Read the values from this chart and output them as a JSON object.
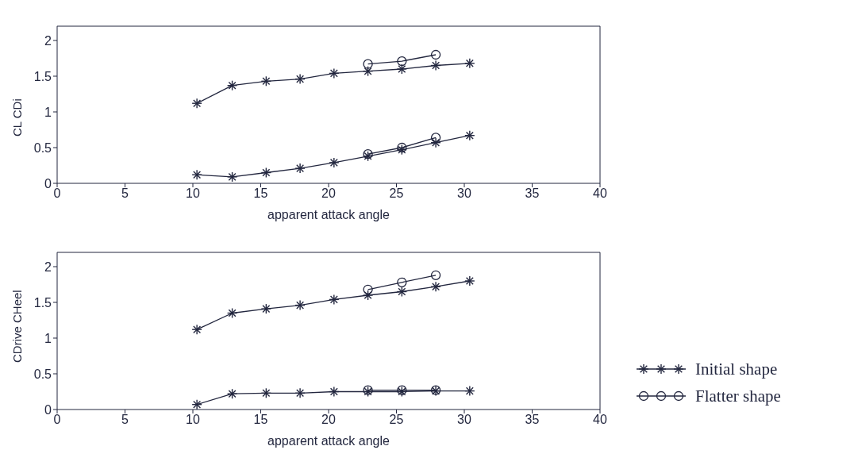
{
  "chart_data": [
    {
      "type": "line",
      "xlabel": "apparent attack angle",
      "ylabel": "CL  CDi",
      "xlim": [
        0,
        40
      ],
      "xticks": [
        0,
        5,
        10,
        15,
        20,
        25,
        30,
        35,
        40
      ],
      "ylim": [
        0,
        2.2
      ],
      "yticks": [
        0,
        0.5,
        1,
        1.5,
        2
      ],
      "grid": false,
      "legend": false,
      "series": [
        {
          "color": "#23273f",
          "marker": "cross",
          "x": [
            10.3,
            12.9,
            15.4,
            17.9,
            20.4,
            22.9,
            25.4,
            27.9,
            30.4
          ],
          "values": [
            1.12,
            1.37,
            1.43,
            1.46,
            1.54,
            1.57,
            1.6,
            1.65,
            1.68
          ]
        },
        {
          "color": "#23273f",
          "marker": "cross",
          "x": [
            10.3,
            12.9,
            15.4,
            17.9,
            20.4,
            22.9,
            25.4,
            27.9,
            30.4
          ],
          "values": [
            0.12,
            0.09,
            0.15,
            0.21,
            0.29,
            0.38,
            0.47,
            0.57,
            0.67
          ]
        },
        {
          "color": "#23273f",
          "marker": "circle",
          "x": [
            22.9,
            25.4,
            27.9
          ],
          "values": [
            1.67,
            1.71,
            1.8
          ]
        },
        {
          "color": "#23273f",
          "marker": "circle",
          "x": [
            22.9,
            25.4,
            27.9
          ],
          "values": [
            0.41,
            0.5,
            0.64
          ]
        }
      ]
    },
    {
      "type": "line",
      "xlabel": "apparent attack angle",
      "ylabel": "CDrive  CHeel",
      "xlim": [
        0,
        40
      ],
      "xticks": [
        0,
        5,
        10,
        15,
        20,
        25,
        30,
        35,
        40
      ],
      "ylim": [
        0,
        2.2
      ],
      "yticks": [
        0,
        0.5,
        1,
        1.5,
        2
      ],
      "grid": false,
      "legend": "right",
      "series": [
        {
          "name": "Initial shape",
          "color": "#23273f",
          "marker": "cross",
          "x": [
            10.3,
            12.9,
            15.4,
            17.9,
            20.4,
            22.9,
            25.4,
            27.9,
            30.4
          ],
          "values": [
            1.12,
            1.35,
            1.41,
            1.46,
            1.54,
            1.6,
            1.65,
            1.72,
            1.8
          ]
        },
        {
          "color": "#23273f",
          "marker": "cross",
          "x": [
            10.3,
            12.9,
            15.4,
            17.9,
            20.4,
            22.9,
            25.4,
            27.9,
            30.4
          ],
          "values": [
            0.07,
            0.22,
            0.23,
            0.23,
            0.25,
            0.25,
            0.25,
            0.26,
            0.26
          ]
        },
        {
          "name": "Flatter shape",
          "color": "#23273f",
          "marker": "circle",
          "x": [
            22.9,
            25.4,
            27.9
          ],
          "values": [
            1.68,
            1.78,
            1.88
          ]
        },
        {
          "color": "#23273f",
          "marker": "circle",
          "x": [
            22.9,
            25.4,
            27.9
          ],
          "values": [
            0.27,
            0.27,
            0.27
          ]
        }
      ]
    }
  ]
}
